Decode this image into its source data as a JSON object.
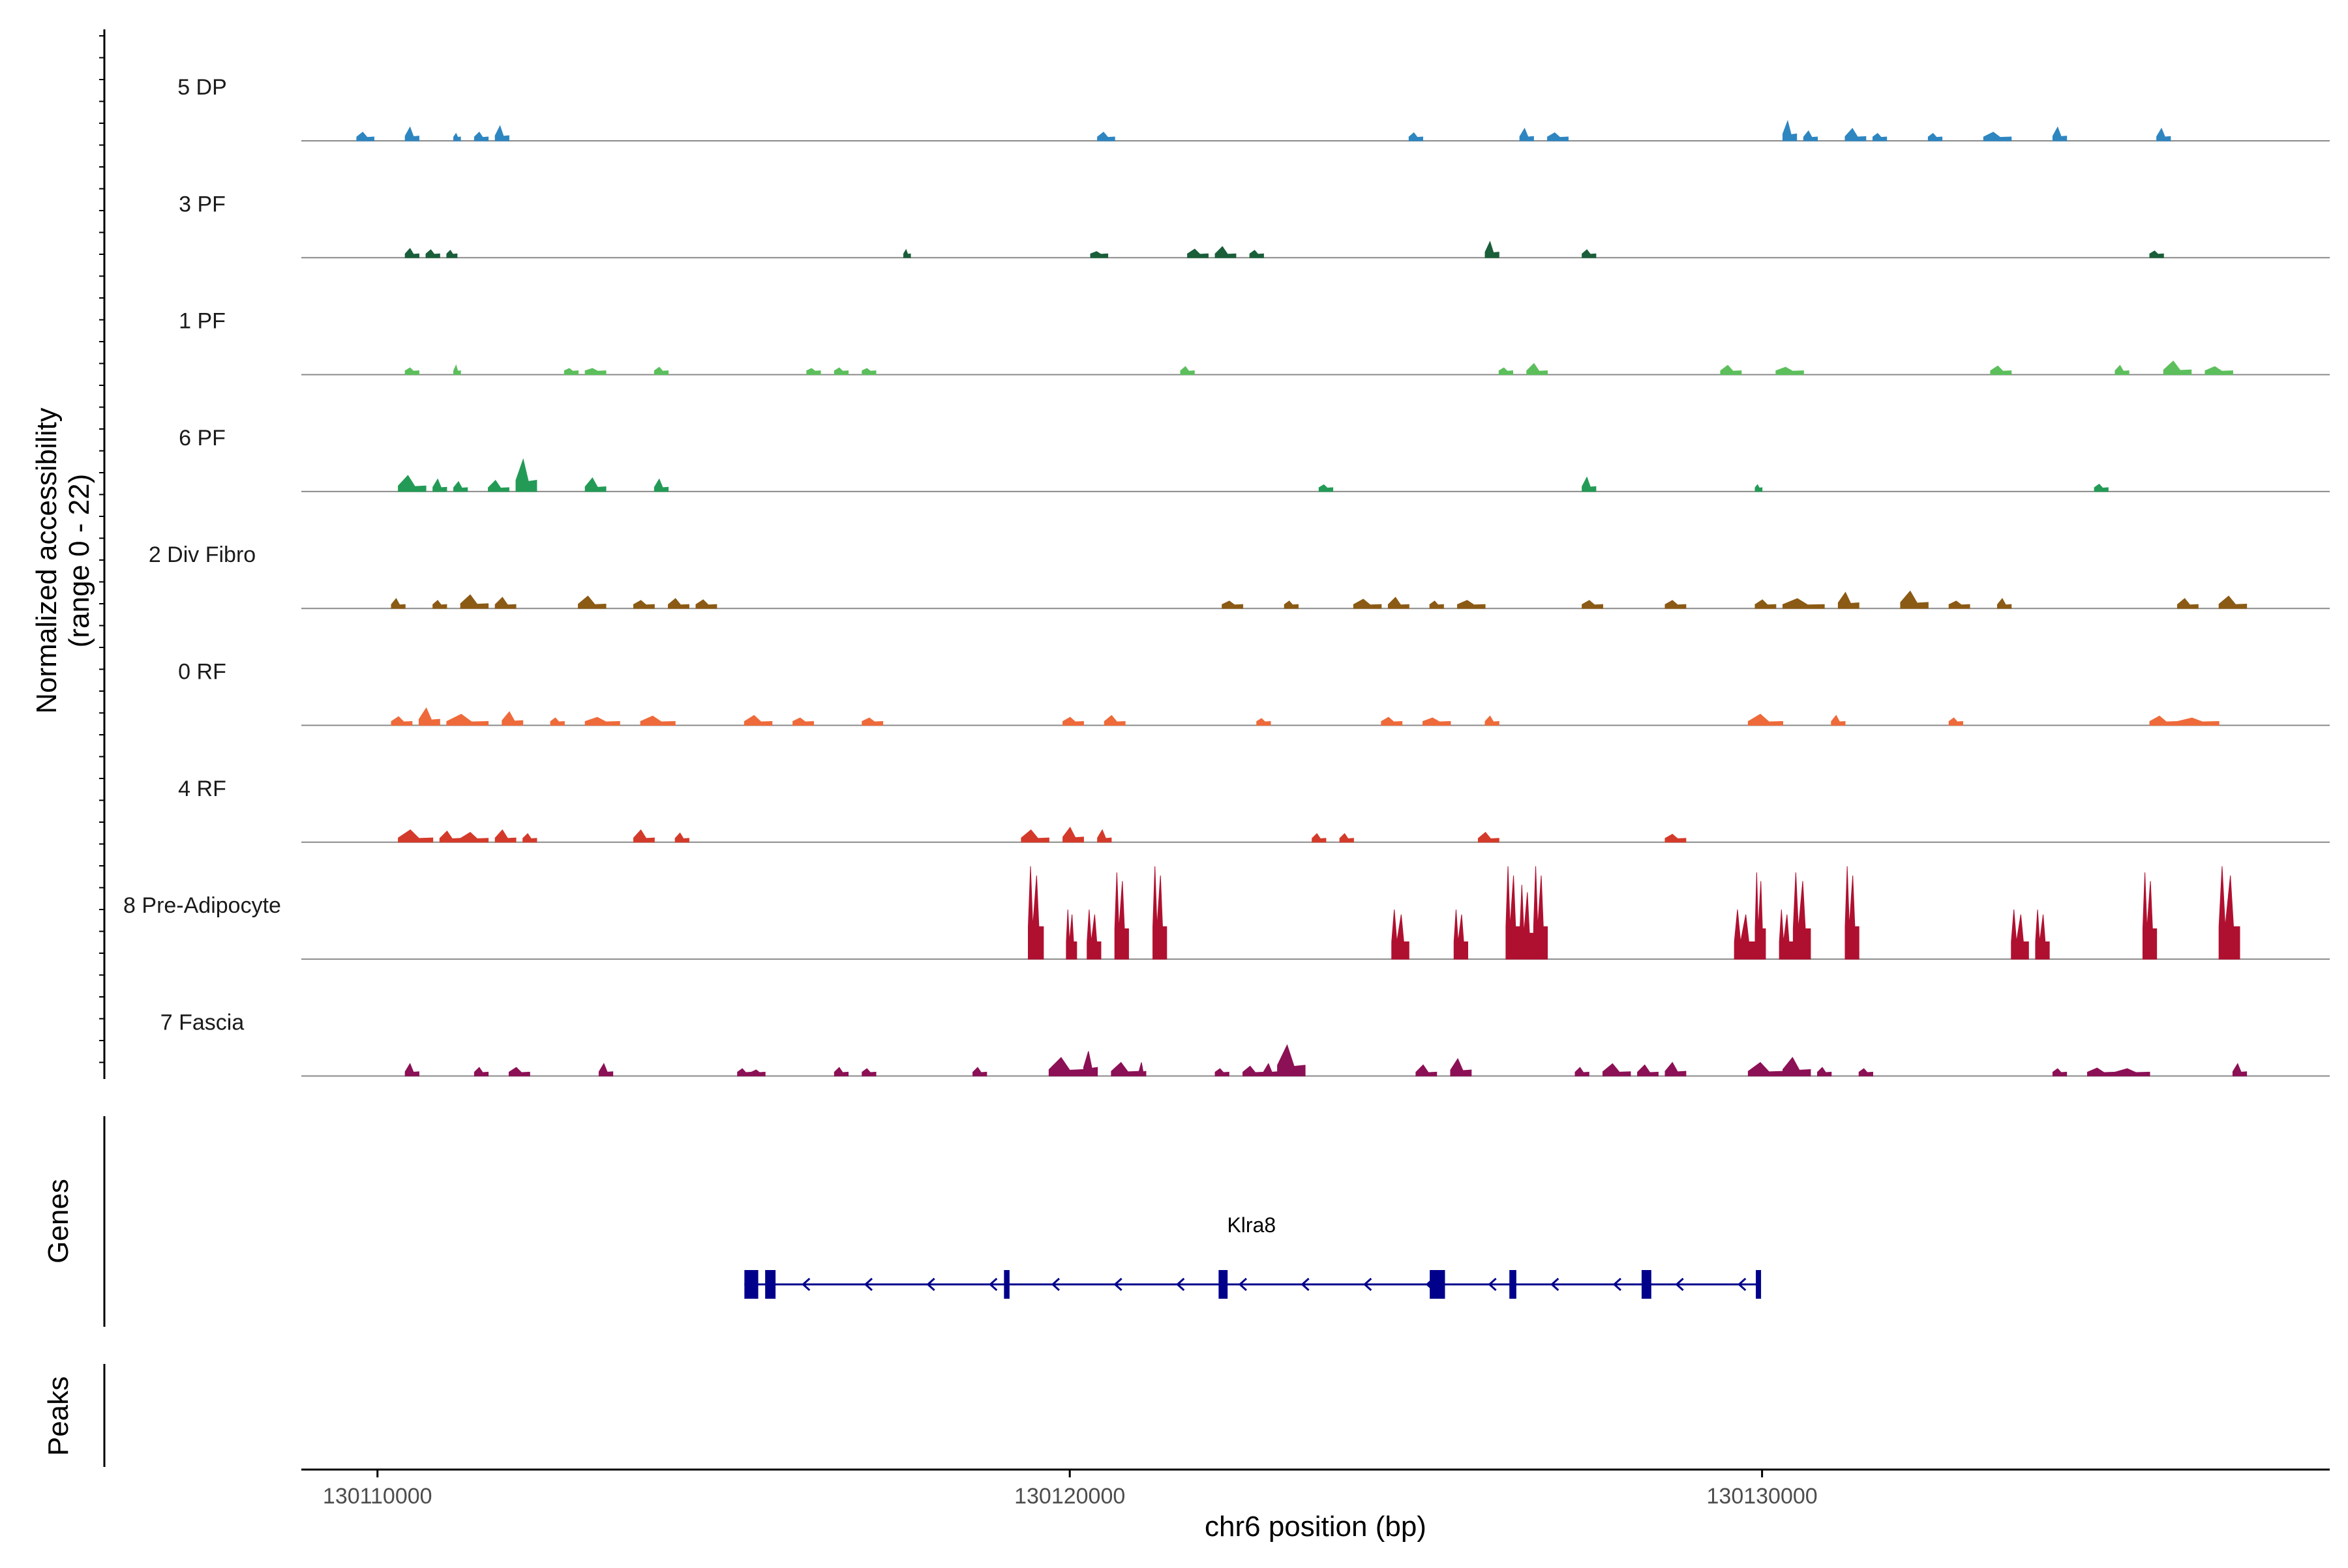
{
  "chart_data": {
    "type": "coverage",
    "title": "",
    "region": {
      "chrom": "chr6",
      "start": 130108900,
      "end": 130138200
    },
    "ylabel": [
      "Normalized accessibility",
      "(range 0 - 22)"
    ],
    "ylim": [
      0,
      22
    ],
    "xlabel": "chr6 position (bp)",
    "xticks": [
      {
        "value": 130110000,
        "label": "130110000"
      },
      {
        "value": 130120000,
        "label": "130120000"
      },
      {
        "value": 130130000,
        "label": "130130000"
      }
    ],
    "tracks": [
      {
        "name": "5 DP",
        "color": "#2E86C1",
        "peaks": [
          [
            130109700,
            130109950,
            1.4
          ],
          [
            130110400,
            130110600,
            2.2
          ],
          [
            130111100,
            130111200,
            1.2
          ],
          [
            130111400,
            130111600,
            1.4
          ],
          [
            130111700,
            130111900,
            2.4
          ],
          [
            130120400,
            130120650,
            1.4
          ],
          [
            130124900,
            130125100,
            1.3
          ],
          [
            130126500,
            130126700,
            2.0
          ],
          [
            130126900,
            130127200,
            1.3
          ],
          [
            130130300,
            130130500,
            3.2
          ],
          [
            130130600,
            130130800,
            1.6
          ],
          [
            130131200,
            130131500,
            2.0
          ],
          [
            130131600,
            130131800,
            1.2
          ],
          [
            130132400,
            130132600,
            1.2
          ],
          [
            130133200,
            130133600,
            1.4
          ],
          [
            130134200,
            130134400,
            2.2
          ],
          [
            130135700,
            130135900,
            2.0
          ]
        ]
      },
      {
        "name": "3 PF",
        "color": "#1A5E3A",
        "peaks": [
          [
            130110400,
            130110600,
            1.5
          ],
          [
            130110700,
            130110900,
            1.3
          ],
          [
            130111000,
            130111150,
            1.2
          ],
          [
            130117600,
            130117700,
            1.3
          ],
          [
            130120300,
            130120550,
            1.0
          ],
          [
            130121700,
            130122000,
            1.4
          ],
          [
            130122100,
            130122400,
            1.8
          ],
          [
            130122600,
            130122800,
            1.2
          ],
          [
            130126000,
            130126200,
            2.6
          ],
          [
            130127400,
            130127600,
            1.3
          ],
          [
            130135600,
            130135800,
            1.1
          ]
        ]
      },
      {
        "name": "1 PF",
        "color": "#5CBF5C",
        "peaks": [
          [
            130110400,
            130110600,
            1.1
          ],
          [
            130111100,
            130111200,
            1.5
          ],
          [
            130112700,
            130112900,
            1.0
          ],
          [
            130113000,
            130113300,
            1.0
          ],
          [
            130114000,
            130114200,
            1.2
          ],
          [
            130116200,
            130116400,
            1.0
          ],
          [
            130116600,
            130116800,
            1.1
          ],
          [
            130117000,
            130117200,
            1.0
          ],
          [
            130121600,
            130121800,
            1.3
          ],
          [
            130126200,
            130126400,
            1.1
          ],
          [
            130126600,
            130126900,
            1.8
          ],
          [
            130129400,
            130129700,
            1.5
          ],
          [
            130130200,
            130130600,
            1.2
          ],
          [
            130133300,
            130133600,
            1.4
          ],
          [
            130135100,
            130135300,
            1.5
          ],
          [
            130135800,
            130136200,
            2.2
          ],
          [
            130136400,
            130136800,
            1.3
          ]
        ]
      },
      {
        "name": "6 PF",
        "color": "#239B56",
        "peaks": [
          [
            130110300,
            130110700,
            2.6
          ],
          [
            130110800,
            130111000,
            2.0
          ],
          [
            130111100,
            130111300,
            1.6
          ],
          [
            130111600,
            130111900,
            1.8
          ],
          [
            130112000,
            130112300,
            5.2
          ],
          [
            130113000,
            130113300,
            2.2
          ],
          [
            130114000,
            130114200,
            2.0
          ],
          [
            130123600,
            130123800,
            1.1
          ],
          [
            130127400,
            130127600,
            2.3
          ],
          [
            130129900,
            130130000,
            1.1
          ],
          [
            130134800,
            130135000,
            1.2
          ]
        ]
      },
      {
        "name": "2 Div Fibro",
        "color": "#8B5A14",
        "peaks": [
          [
            130110200,
            130110400,
            1.6
          ],
          [
            130110800,
            130111000,
            1.3
          ],
          [
            130111200,
            130111600,
            2.2
          ],
          [
            130111700,
            130112000,
            1.8
          ],
          [
            130112900,
            130113300,
            2.0
          ],
          [
            130113700,
            130114000,
            1.3
          ],
          [
            130114200,
            130114500,
            1.6
          ],
          [
            130114600,
            130114900,
            1.4
          ],
          [
            130122200,
            130122500,
            1.2
          ],
          [
            130123100,
            130123300,
            1.2
          ],
          [
            130124100,
            130124500,
            1.5
          ],
          [
            130124600,
            130124900,
            1.8
          ],
          [
            130125200,
            130125400,
            1.2
          ],
          [
            130125600,
            130126000,
            1.3
          ],
          [
            130127400,
            130127700,
            1.3
          ],
          [
            130128600,
            130128900,
            1.3
          ],
          [
            130129900,
            130130200,
            1.4
          ],
          [
            130130300,
            130130900,
            1.6
          ],
          [
            130131100,
            130131400,
            2.6
          ],
          [
            130132000,
            130132400,
            2.8
          ],
          [
            130132700,
            130133000,
            1.2
          ],
          [
            130133400,
            130133600,
            1.6
          ],
          [
            130136000,
            130136300,
            1.6
          ],
          [
            130136600,
            130137000,
            2.0
          ]
        ]
      },
      {
        "name": "0 RF",
        "color": "#EE6A3A",
        "peaks": [
          [
            130110200,
            130110500,
            1.4
          ],
          [
            130110600,
            130110900,
            2.8
          ],
          [
            130111000,
            130111600,
            1.8
          ],
          [
            130111800,
            130112100,
            2.2
          ],
          [
            130112500,
            130112700,
            1.2
          ],
          [
            130113000,
            130113500,
            1.3
          ],
          [
            130113800,
            130114300,
            1.5
          ],
          [
            130115300,
            130115700,
            1.6
          ],
          [
            130116000,
            130116300,
            1.2
          ],
          [
            130117000,
            130117300,
            1.2
          ],
          [
            130119900,
            130120200,
            1.3
          ],
          [
            130120500,
            130120800,
            1.6
          ],
          [
            130122700,
            130122900,
            1.1
          ],
          [
            130124500,
            130124800,
            1.3
          ],
          [
            130125100,
            130125500,
            1.2
          ],
          [
            130126000,
            130126200,
            1.5
          ],
          [
            130129800,
            130130300,
            1.8
          ],
          [
            130131000,
            130131200,
            1.6
          ],
          [
            130132700,
            130132900,
            1.2
          ],
          [
            130135600,
            130136000,
            1.5
          ],
          [
            130136000,
            130136600,
            1.2
          ]
        ]
      },
      {
        "name": "4 RF",
        "color": "#D43A2A",
        "peaks": [
          [
            130110300,
            130110800,
            2.0
          ],
          [
            130110900,
            130111200,
            1.8
          ],
          [
            130111200,
            130111600,
            1.6
          ],
          [
            130111700,
            130112000,
            2.0
          ],
          [
            130112100,
            130112300,
            1.4
          ],
          [
            130113700,
            130114000,
            2.0
          ],
          [
            130114300,
            130114500,
            1.5
          ],
          [
            130119300,
            130119700,
            2.0
          ],
          [
            130119900,
            130120200,
            2.4
          ],
          [
            130120400,
            130120600,
            2.0
          ],
          [
            130123500,
            130123700,
            1.4
          ],
          [
            130123900,
            130124100,
            1.4
          ],
          [
            130125900,
            130126200,
            1.6
          ],
          [
            130128600,
            130128900,
            1.3
          ]
        ]
      },
      {
        "name": "8 Pre-Adipocyte",
        "color": "#B01030",
        "peaks": [
          [
            130119400,
            130119620,
            15.0
          ],
          [
            130119950,
            130120100,
            8.0
          ],
          [
            130120250,
            130120450,
            8.0
          ],
          [
            130120650,
            130120850,
            14.0
          ],
          [
            130121200,
            130121400,
            15.0
          ],
          [
            130124650,
            130124900,
            8.0
          ],
          [
            130125550,
            130125750,
            8.0
          ],
          [
            130126300,
            130126500,
            15.0
          ],
          [
            130126500,
            130126700,
            12.0
          ],
          [
            130126700,
            130126900,
            15.0
          ],
          [
            130129600,
            130129900,
            8.0
          ],
          [
            130129900,
            130130050,
            14.0
          ],
          [
            130130250,
            130130450,
            8.0
          ],
          [
            130130450,
            130130700,
            14.0
          ],
          [
            130131200,
            130131400,
            15.0
          ],
          [
            130133600,
            130133850,
            8.0
          ],
          [
            130133950,
            130134150,
            8.0
          ],
          [
            130135500,
            130135700,
            14.0
          ],
          [
            130136600,
            130136900,
            15.0
          ]
        ]
      },
      {
        "name": "7 Fascia",
        "color": "#8C1055",
        "peaks": [
          [
            130110400,
            130110600,
            2.0
          ],
          [
            130111400,
            130111600,
            1.4
          ],
          [
            130111900,
            130112200,
            1.4
          ],
          [
            130113200,
            130113400,
            2.0
          ],
          [
            130115200,
            130115400,
            1.2
          ],
          [
            130115400,
            130115600,
            1.0
          ],
          [
            130116600,
            130116800,
            1.4
          ],
          [
            130117000,
            130117200,
            1.2
          ],
          [
            130118600,
            130118800,
            1.4
          ],
          [
            130119700,
            130120200,
            3.0
          ],
          [
            130120200,
            130120400,
            4.0
          ],
          [
            130120600,
            130121000,
            2.2
          ],
          [
            130121000,
            130121100,
            2.2
          ],
          [
            130122100,
            130122300,
            1.2
          ],
          [
            130122500,
            130122800,
            1.6
          ],
          [
            130122800,
            130123000,
            2.0
          ],
          [
            130123000,
            130123400,
            5.0
          ],
          [
            130125000,
            130125300,
            1.8
          ],
          [
            130125500,
            130125800,
            2.8
          ],
          [
            130127300,
            130127500,
            1.4
          ],
          [
            130127700,
            130128100,
            2.0
          ],
          [
            130128200,
            130128500,
            1.8
          ],
          [
            130128600,
            130128900,
            2.2
          ],
          [
            130129800,
            130130300,
            2.2
          ],
          [
            130130300,
            130130700,
            3.0
          ],
          [
            130130800,
            130131000,
            1.4
          ],
          [
            130131400,
            130131600,
            1.2
          ],
          [
            130134200,
            130134400,
            1.2
          ],
          [
            130134700,
            130135100,
            1.3
          ],
          [
            130135100,
            130135600,
            1.2
          ],
          [
            130136800,
            130137000,
            2.0
          ]
        ]
      }
    ],
    "genes_label": "Genes",
    "peaks_label": "Peaks",
    "gene": {
      "name": "Klra8",
      "start": 130115300,
      "end": 130129950,
      "strand": "-",
      "exons": [
        [
          130115300,
          130115500
        ],
        [
          130115600,
          130115750
        ],
        [
          130119050,
          130119130
        ],
        [
          130122150,
          130122280
        ],
        [
          130125200,
          130125420
        ],
        [
          130126350,
          130126450
        ],
        [
          130128260,
          130128400
        ],
        [
          130129910,
          130129950
        ]
      ]
    }
  }
}
